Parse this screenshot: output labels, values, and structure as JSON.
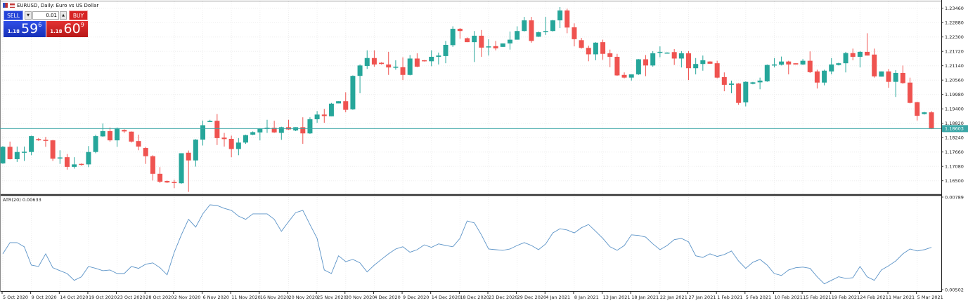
{
  "window": {
    "title": "EURUSD, Daily: Euro vs US Dollar"
  },
  "trade_panel": {
    "sell_label": "SELL",
    "buy_label": "BUY",
    "lot_value": "0.01",
    "down_arrow": "▼",
    "up_arrow": "▲",
    "sell_price": {
      "prefix": "1.18",
      "big": "59",
      "sup": "6"
    },
    "buy_price": {
      "prefix": "1.18",
      "big": "60",
      "sup": "9"
    }
  },
  "colors": {
    "bull": "#26a69a",
    "bear": "#ef5350",
    "price_line": "#3ba7a7",
    "atr_line": "#5b93c7",
    "grid": "#eeeeee"
  },
  "chart_data": {
    "type": "candlestick",
    "symbol": "EURUSD",
    "timeframe": "Daily",
    "price_axis": {
      "ticks": [
        "1.23460",
        "1.22880",
        "1.22300",
        "1.21720",
        "1.21140",
        "1.20560",
        "1.19980",
        "1.19400",
        "1.18820",
        "1.18240",
        "1.17660",
        "1.17080",
        "1.16500"
      ],
      "range": [
        1.1618,
        1.2354
      ]
    },
    "current_price": "1.18603",
    "date_labels": [
      "5 Oct 2020",
      "9 Oct 2020",
      "14 Oct 2020",
      "19 Oct 2020",
      "23 Oct 2020",
      "28 Oct 2020",
      "2 Nov 2020",
      "6 Nov 2020",
      "11 Nov 2020",
      "16 Nov 2020",
      "20 Nov 2020",
      "25 Nov 2020",
      "30 Nov 2020",
      "4 Dec 2020",
      "9 Dec 2020",
      "14 Dec 2020",
      "18 Dec 2020",
      "23 Dec 2020",
      "29 Dec 2020",
      "4 Jan 2021",
      "8 Jan 2021",
      "13 Jan 2021",
      "18 Jan 2021",
      "22 Jan 2021",
      "27 Jan 2021",
      "1 Feb 2021",
      "5 Feb 2021",
      "10 Feb 2021",
      "15 Feb 2021",
      "19 Feb 2021",
      "24 Feb 2021",
      "1 Mar 2021",
      "5 Mar 2021"
    ],
    "ohlc": [
      [
        1.172,
        1.179,
        1.1718,
        1.1787
      ],
      [
        1.1787,
        1.1808,
        1.1736,
        1.1737
      ],
      [
        1.1737,
        1.1788,
        1.1726,
        1.1766
      ],
      [
        1.1765,
        1.1788,
        1.173,
        1.1767
      ],
      [
        1.1766,
        1.1832,
        1.1753,
        1.183
      ],
      [
        1.1818,
        1.1822,
        1.1811,
        1.1813
      ],
      [
        1.1815,
        1.1827,
        1.1787,
        1.1812
      ],
      [
        1.1813,
        1.1815,
        1.173,
        1.1739
      ],
      [
        1.1741,
        1.1773,
        1.1718,
        1.1744
      ],
      [
        1.1745,
        1.1758,
        1.1695,
        1.1706
      ],
      [
        1.1706,
        1.1745,
        1.1699,
        1.1716
      ],
      [
        1.1718,
        1.172,
        1.1711,
        1.1715
      ],
      [
        1.1716,
        1.179,
        1.1705,
        1.1766
      ],
      [
        1.1766,
        1.1836,
        1.1761,
        1.183
      ],
      [
        1.1829,
        1.1881,
        1.1827,
        1.185
      ],
      [
        1.185,
        1.1865,
        1.1808,
        1.1813
      ],
      [
        1.1813,
        1.1865,
        1.1787,
        1.1862
      ],
      [
        1.1855,
        1.1858,
        1.1843,
        1.1849
      ],
      [
        1.1848,
        1.1849,
        1.1804,
        1.1808
      ],
      [
        1.181,
        1.1836,
        1.1773,
        1.1788
      ],
      [
        1.1782,
        1.1787,
        1.1718,
        1.1749
      ],
      [
        1.1749,
        1.1753,
        1.1651,
        1.1678
      ],
      [
        1.1678,
        1.1705,
        1.1641,
        1.1646
      ],
      [
        1.1649,
        1.1651,
        1.1641,
        1.1643
      ],
      [
        1.1645,
        1.1654,
        1.162,
        1.1641
      ],
      [
        1.164,
        1.1761,
        1.1638,
        1.1761
      ],
      [
        1.1763,
        1.1772,
        1.1605,
        1.1732
      ],
      [
        1.1732,
        1.1818,
        1.1707,
        1.1816
      ],
      [
        1.1816,
        1.1893,
        1.1792,
        1.1874
      ],
      [
        1.1888,
        1.1896,
        1.1887,
        1.1891
      ],
      [
        1.1892,
        1.1919,
        1.1794,
        1.1822
      ],
      [
        1.1824,
        1.1843,
        1.1788,
        1.1818
      ],
      [
        1.1819,
        1.1832,
        1.1745,
        1.1778
      ],
      [
        1.1778,
        1.1822,
        1.1753,
        1.1804
      ],
      [
        1.1804,
        1.1836,
        1.1799,
        1.1834
      ],
      [
        1.1836,
        1.1849,
        1.1834,
        1.1846
      ],
      [
        1.1845,
        1.1862,
        1.1813,
        1.186
      ],
      [
        1.1862,
        1.1896,
        1.1843,
        1.1864
      ],
      [
        1.1864,
        1.1892,
        1.1843,
        1.1845
      ],
      [
        1.1843,
        1.1868,
        1.1815,
        1.1866
      ],
      [
        1.1866,
        1.1896,
        1.1855,
        1.1857
      ],
      [
        1.1853,
        1.1866,
        1.185,
        1.1866
      ],
      [
        1.1866,
        1.1906,
        1.1799,
        1.1841
      ],
      [
        1.1841,
        1.1906,
        1.1839,
        1.1898
      ],
      [
        1.1898,
        1.1931,
        1.1884,
        1.1917
      ],
      [
        1.1917,
        1.194,
        1.1884,
        1.1911
      ],
      [
        1.191,
        1.1964,
        1.191,
        1.1961
      ],
      [
        1.1962,
        1.1971,
        1.1962,
        1.1971
      ],
      [
        1.1971,
        1.2007,
        1.1926,
        1.1936
      ],
      [
        1.1938,
        1.2075,
        1.1936,
        1.2073
      ],
      [
        1.2073,
        1.2119,
        1.2003,
        1.2115
      ],
      [
        1.2113,
        1.2176,
        1.2101,
        1.2145
      ],
      [
        1.2145,
        1.2176,
        1.211,
        1.2119
      ],
      [
        1.2126,
        1.2128,
        1.2119,
        1.2121
      ],
      [
        1.2119,
        1.217,
        1.2077,
        1.2107
      ],
      [
        1.2108,
        1.2136,
        1.2098,
        1.211
      ],
      [
        1.2108,
        1.2148,
        1.2056,
        1.2077
      ],
      [
        1.2077,
        1.2157,
        1.2075,
        1.2143
      ],
      [
        1.2143,
        1.2164,
        1.2108,
        1.211
      ],
      [
        1.2136,
        1.2137,
        1.2131,
        1.2132
      ],
      [
        1.2132,
        1.2176,
        1.2112,
        1.215
      ],
      [
        1.215,
        1.2167,
        1.2119,
        1.2155
      ],
      [
        1.2153,
        1.2214,
        1.2124,
        1.2198
      ],
      [
        1.2197,
        1.2273,
        1.219,
        1.2263
      ],
      [
        1.2263,
        1.2266,
        1.2223,
        1.2254
      ],
      [
        1.2225,
        1.2228,
        1.2209,
        1.2209
      ],
      [
        1.2209,
        1.2254,
        1.2129,
        1.2235
      ],
      [
        1.2235,
        1.2258,
        1.215,
        1.2187
      ],
      [
        1.2189,
        1.2221,
        1.2155,
        1.2192
      ],
      [
        1.2193,
        1.2214,
        1.2176,
        1.2184
      ],
      [
        1.219,
        1.2204,
        1.219,
        1.2204
      ],
      [
        1.2204,
        1.2252,
        1.2179,
        1.2219
      ],
      [
        1.2219,
        1.2273,
        1.2219,
        1.2254
      ],
      [
        1.2254,
        1.2311,
        1.2252,
        1.2297
      ],
      [
        1.2297,
        1.2311,
        1.2207,
        1.2214
      ],
      [
        1.2231,
        1.2252,
        1.223,
        1.2249
      ],
      [
        1.225,
        1.2311,
        1.2238,
        1.2254
      ],
      [
        1.2254,
        1.2299,
        1.2252,
        1.2297
      ],
      [
        1.2297,
        1.2351,
        1.2266,
        1.2337
      ],
      [
        1.2337,
        1.2344,
        1.2245,
        1.2268
      ],
      [
        1.2269,
        1.2285,
        1.2192,
        1.2221
      ],
      [
        1.2217,
        1.2226,
        1.2183,
        1.2186
      ],
      [
        1.2186,
        1.2195,
        1.2132,
        1.216
      ],
      [
        1.216,
        1.2209,
        1.2136,
        1.2207
      ],
      [
        1.2209,
        1.2219,
        1.2138,
        1.2162
      ],
      [
        1.2164,
        1.2179,
        1.2108,
        1.215
      ],
      [
        1.215,
        1.2162,
        1.2073,
        1.2075
      ],
      [
        1.2077,
        1.2087,
        1.2063,
        1.2066
      ],
      [
        1.2066,
        1.2079,
        1.2054,
        1.2079
      ],
      [
        1.2079,
        1.2141,
        1.2077,
        1.214
      ],
      [
        1.214,
        1.2157,
        1.2072,
        1.2115
      ],
      [
        1.2115,
        1.2173,
        1.211,
        1.2164
      ],
      [
        1.2167,
        1.2192,
        1.2148,
        1.217
      ],
      [
        1.2164,
        1.2168,
        1.2163,
        1.2167
      ],
      [
        1.2169,
        1.2181,
        1.2117,
        1.2143
      ],
      [
        1.2143,
        1.2173,
        1.2107,
        1.2164
      ],
      [
        1.2164,
        1.2173,
        1.2056,
        1.2104
      ],
      [
        1.2104,
        1.2145,
        1.2079,
        1.2121
      ],
      [
        1.2121,
        1.2155,
        1.2094,
        1.2136
      ],
      [
        1.2131,
        1.2132,
        1.2122,
        1.2122
      ],
      [
        1.2124,
        1.2134,
        1.2063,
        1.2066
      ],
      [
        1.2068,
        1.2087,
        1.2011,
        1.2037
      ],
      [
        1.2037,
        1.2054,
        1.2003,
        1.2042
      ],
      [
        1.2042,
        1.2044,
        1.1956,
        1.1964
      ],
      [
        1.1966,
        1.2051,
        1.195,
        1.2049
      ],
      [
        1.2041,
        1.2049,
        1.2039,
        1.2047
      ],
      [
        1.2047,
        1.2066,
        1.2019,
        1.2054
      ],
      [
        1.2051,
        1.2119,
        1.2049,
        1.2117
      ],
      [
        1.2115,
        1.2145,
        1.2107,
        1.2119
      ],
      [
        1.2118,
        1.2151,
        1.2115,
        1.2131
      ],
      [
        1.2131,
        1.2134,
        1.2079,
        1.2119
      ],
      [
        1.2124,
        1.2124,
        1.2119,
        1.2119
      ],
      [
        1.2119,
        1.2141,
        1.2117,
        1.2134
      ],
      [
        1.2134,
        1.2172,
        1.2085,
        1.2088
      ],
      [
        1.2091,
        1.2098,
        1.2022,
        1.2046
      ],
      [
        1.2046,
        1.2098,
        1.2035,
        1.2094
      ],
      [
        1.2091,
        1.2145,
        1.2079,
        1.2119
      ],
      [
        1.2117,
        1.2126,
        1.2115,
        1.2124
      ],
      [
        1.2124,
        1.217,
        1.2087,
        1.2165
      ],
      [
        1.2165,
        1.2183,
        1.2136,
        1.215
      ],
      [
        1.215,
        1.2173,
        1.2107,
        1.217
      ],
      [
        1.217,
        1.2245,
        1.2155,
        1.2155
      ],
      [
        1.2159,
        1.2183,
        1.2066,
        1.2071
      ],
      [
        1.207,
        1.2091,
        1.207,
        1.2091
      ],
      [
        1.2091,
        1.2101,
        1.2025,
        1.2049
      ],
      [
        1.2049,
        1.2096,
        1.1988,
        1.2085
      ],
      [
        1.2085,
        1.2115,
        1.2041,
        1.2044
      ],
      [
        1.2046,
        1.2066,
        1.1962,
        1.1964
      ],
      [
        1.1967,
        1.1969,
        1.1893,
        1.1912
      ],
      [
        1.1919,
        1.1928,
        1.1917,
        1.1926
      ],
      [
        1.1926,
        1.1931,
        1.1858,
        1.18603
      ]
    ],
    "indicator": {
      "label": "ATR(20) 0.00633",
      "name": "ATR(20)",
      "axis_ticks": [
        "0.00789",
        "0.00502"
      ],
      "range": [
        0.00502,
        0.00789
      ],
      "values": [
        0.00613,
        0.00648,
        0.00648,
        0.00635,
        0.00578,
        0.00574,
        0.00613,
        0.0057,
        0.00561,
        0.00552,
        0.00531,
        0.00542,
        0.00574,
        0.00568,
        0.00561,
        0.00563,
        0.00552,
        0.00552,
        0.00574,
        0.00568,
        0.00581,
        0.00585,
        0.0057,
        0.00548,
        0.00618,
        0.00672,
        0.0072,
        0.00696,
        0.00737,
        0.00765,
        0.00763,
        0.00754,
        0.00748,
        0.0073,
        0.0072,
        0.00737,
        0.00737,
        0.00737,
        0.0072,
        0.00683,
        0.00713,
        0.00741,
        0.00748,
        0.00704,
        0.00661,
        0.00563,
        0.00552,
        0.00607,
        0.00589,
        0.00596,
        0.00585,
        0.00557,
        0.00578,
        0.00596,
        0.00613,
        0.00628,
        0.00635,
        0.00618,
        0.00626,
        0.00641,
        0.00633,
        0.00644,
        0.00639,
        0.00635,
        0.00661,
        0.00715,
        0.00709,
        0.00672,
        0.00628,
        0.00626,
        0.00624,
        0.00628,
        0.00639,
        0.00648,
        0.00639,
        0.00626,
        0.00644,
        0.00678,
        0.00691,
        0.00687,
        0.00678,
        0.00694,
        0.00704,
        0.00683,
        0.00661,
        0.00635,
        0.00624,
        0.00639,
        0.00672,
        0.0067,
        0.00665,
        0.00644,
        0.00626,
        0.00639,
        0.00657,
        0.00661,
        0.0065,
        0.00607,
        0.00602,
        0.00613,
        0.00605,
        0.00611,
        0.00622,
        0.00591,
        0.00568,
        0.00587,
        0.00596,
        0.00578,
        0.00552,
        0.00546,
        0.00563,
        0.0057,
        0.00572,
        0.00568,
        0.00542,
        0.0052,
        0.00531,
        0.00542,
        0.00537,
        0.00539,
        0.00574,
        0.00542,
        0.00531,
        0.00563,
        0.00576,
        0.00591,
        0.00613,
        0.00628,
        0.00622,
        0.00626,
        0.00633
      ]
    }
  }
}
